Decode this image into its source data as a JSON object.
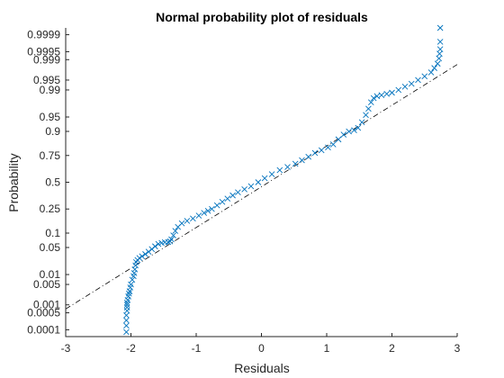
{
  "chart_data": {
    "type": "scatter",
    "title": "Normal probability plot of residuals",
    "xlabel": "Residuals",
    "ylabel": "Probability",
    "xlim": [
      -3,
      3
    ],
    "y_scale": "normal-probability",
    "x_ticks": [
      -3,
      -2,
      -1,
      0,
      1,
      2,
      3
    ],
    "y_ticks": [
      0.0001,
      0.0005,
      0.001,
      0.005,
      0.01,
      0.05,
      0.1,
      0.25,
      0.5,
      0.75,
      0.9,
      0.95,
      0.99,
      0.995,
      0.999,
      0.9995,
      0.9999
    ],
    "y_tick_labels": [
      "0.0001",
      "0.0005",
      "0.001",
      "0.005",
      "0.01",
      "0.05",
      "0.1",
      "0.25",
      "0.5",
      "0.75",
      "0.9",
      "0.95",
      "0.99",
      "0.995",
      "0.999",
      "0.9995",
      "0.9999"
    ],
    "marker": "x",
    "marker_color": "#0072BD",
    "reference_line": {
      "style": "dash-dot",
      "color": "#000000",
      "points": [
        [
          -3,
          0.0007
        ],
        [
          3,
          0.9985
        ]
      ]
    },
    "series": [
      {
        "points": [
          [
            -2.07,
            8e-05
          ],
          [
            -2.07,
            0.00015
          ],
          [
            -2.07,
            0.00025
          ],
          [
            -2.07,
            0.0004
          ],
          [
            -2.06,
            0.0006
          ],
          [
            -2.06,
            0.0008
          ],
          [
            -2.06,
            0.001
          ],
          [
            -2.06,
            0.0012
          ],
          [
            -2.05,
            0.0015
          ],
          [
            -2.04,
            0.002
          ],
          [
            -2.03,
            0.0025
          ],
          [
            -2.02,
            0.003
          ],
          [
            -2.01,
            0.004
          ],
          [
            -2.0,
            0.005
          ],
          [
            -1.98,
            0.007
          ],
          [
            -1.96,
            0.009
          ],
          [
            -1.95,
            0.011
          ],
          [
            -1.94,
            0.014
          ],
          [
            -1.93,
            0.018
          ],
          [
            -1.92,
            0.022
          ],
          [
            -1.9,
            0.025
          ],
          [
            -1.87,
            0.028
          ],
          [
            -1.83,
            0.031
          ],
          [
            -1.78,
            0.035
          ],
          [
            -1.73,
            0.04
          ],
          [
            -1.68,
            0.046
          ],
          [
            -1.63,
            0.053
          ],
          [
            -1.58,
            0.06
          ],
          [
            -1.53,
            0.063
          ],
          [
            -1.48,
            0.065
          ],
          [
            -1.43,
            0.066
          ],
          [
            -1.4,
            0.068
          ],
          [
            -1.38,
            0.075
          ],
          [
            -1.35,
            0.09
          ],
          [
            -1.32,
            0.11
          ],
          [
            -1.28,
            0.13
          ],
          [
            -1.22,
            0.15
          ],
          [
            -1.14,
            0.165
          ],
          [
            -1.05,
            0.18
          ],
          [
            -0.96,
            0.2
          ],
          [
            -0.88,
            0.22
          ],
          [
            -0.82,
            0.235
          ],
          [
            -0.76,
            0.25
          ],
          [
            -0.68,
            0.28
          ],
          [
            -0.6,
            0.31
          ],
          [
            -0.52,
            0.34
          ],
          [
            -0.44,
            0.37
          ],
          [
            -0.36,
            0.4
          ],
          [
            -0.26,
            0.43
          ],
          [
            -0.16,
            0.46
          ],
          [
            -0.05,
            0.5
          ],
          [
            0.05,
            0.54
          ],
          [
            0.16,
            0.58
          ],
          [
            0.28,
            0.62
          ],
          [
            0.4,
            0.65
          ],
          [
            0.52,
            0.68
          ],
          [
            0.62,
            0.71
          ],
          [
            0.72,
            0.74
          ],
          [
            0.82,
            0.77
          ],
          [
            0.92,
            0.79
          ],
          [
            1.02,
            0.81
          ],
          [
            1.1,
            0.83
          ],
          [
            1.18,
            0.86
          ],
          [
            1.26,
            0.885
          ],
          [
            1.34,
            0.9
          ],
          [
            1.42,
            0.905
          ],
          [
            1.48,
            0.915
          ],
          [
            1.54,
            0.935
          ],
          [
            1.6,
            0.955
          ],
          [
            1.64,
            0.968
          ],
          [
            1.68,
            0.978
          ],
          [
            1.72,
            0.983
          ],
          [
            1.77,
            0.985
          ],
          [
            1.84,
            0.986
          ],
          [
            1.92,
            0.987
          ],
          [
            2.0,
            0.988
          ],
          [
            2.1,
            0.99
          ],
          [
            2.2,
            0.992
          ],
          [
            2.3,
            0.9935
          ],
          [
            2.4,
            0.995
          ],
          [
            2.5,
            0.9962
          ],
          [
            2.6,
            0.9972
          ],
          [
            2.65,
            0.998
          ],
          [
            2.7,
            0.9986
          ],
          [
            2.72,
            0.9991
          ],
          [
            2.73,
            0.9994
          ],
          [
            2.74,
            0.9996
          ],
          [
            2.74,
            0.9998
          ],
          [
            2.74,
            0.99995
          ]
        ]
      }
    ]
  }
}
